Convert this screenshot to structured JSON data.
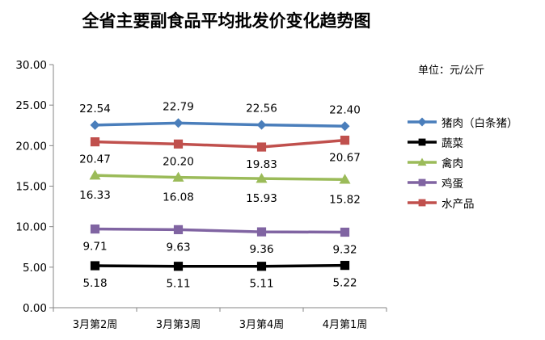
{
  "chart_data": {
    "type": "line",
    "title": "全省主要副食品平均批发价变化趋势图",
    "unit_note": "单位：元/公斤",
    "categories": [
      "3月第2周",
      "3月第3周",
      "3月第4周",
      "4月第1周"
    ],
    "ylim": [
      0,
      30
    ],
    "yticks": [
      "0.00",
      "5.00",
      "10.00",
      "15.00",
      "20.00",
      "25.00",
      "30.00"
    ],
    "grid": false,
    "legend_position": "right",
    "series": [
      {
        "name": "猪肉（白条猪）",
        "values": [
          22.54,
          22.79,
          22.56,
          22.4
        ],
        "labels": [
          "22.54",
          "22.79",
          "22.56",
          "22.40"
        ],
        "color": "#4a7ebb",
        "marker": "diamond",
        "label_pos": "above"
      },
      {
        "name": "蔬菜",
        "values": [
          5.18,
          5.11,
          5.11,
          5.22
        ],
        "labels": [
          "5.18",
          "5.11",
          "5.11",
          "5.22"
        ],
        "color": "#000000",
        "marker": "square",
        "label_pos": "below"
      },
      {
        "name": "禽肉",
        "values": [
          16.33,
          16.08,
          15.93,
          15.82
        ],
        "labels": [
          "16.33",
          "16.08",
          "15.93",
          "15.82"
        ],
        "color": "#9bbb59",
        "marker": "triangle",
        "label_pos": "below"
      },
      {
        "name": "鸡蛋",
        "values": [
          9.71,
          9.63,
          9.36,
          9.32
        ],
        "labels": [
          "9.71",
          "9.63",
          "9.36",
          "9.32"
        ],
        "color": "#8064a2",
        "marker": "square",
        "label_pos": "below"
      },
      {
        "name": "水产品",
        "values": [
          20.47,
          20.2,
          19.83,
          20.67
        ],
        "labels": [
          "20.47",
          "20.20",
          "19.83",
          "20.67"
        ],
        "color": "#c0504d",
        "marker": "square",
        "label_pos": "below"
      }
    ]
  }
}
